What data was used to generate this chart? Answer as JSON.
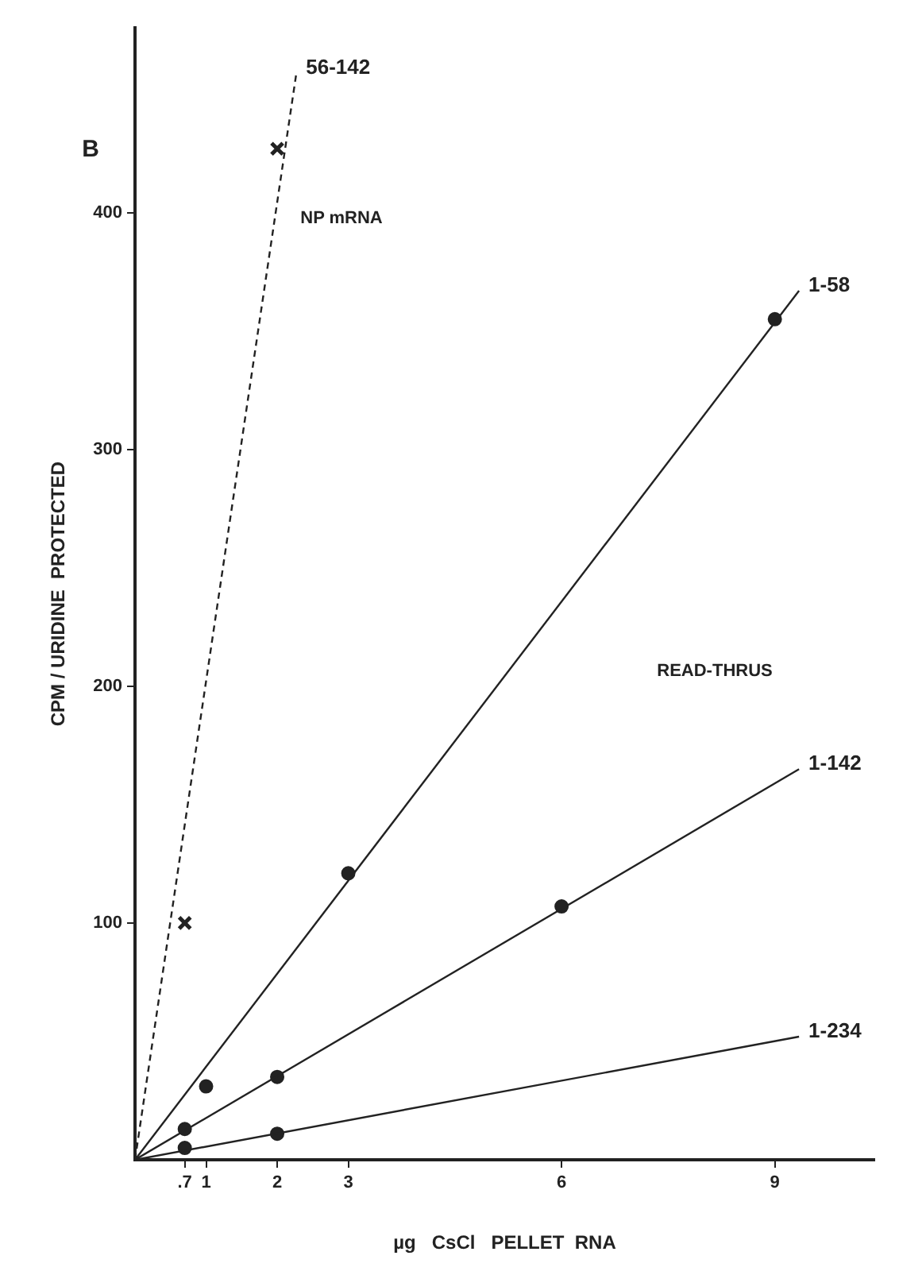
{
  "chart_data": {
    "type": "scatter",
    "xlabel": "µg   CsCl   PELLET  RNA",
    "ylabel": "CPM / URIDINE  PROTECTED",
    "xlim": [
      0,
      10.4
    ],
    "ylim": [
      0,
      478
    ],
    "xticks": [
      {
        "value": 0.7,
        "label": ".7"
      },
      1,
      2,
      3,
      6,
      9
    ],
    "yticks": [
      100,
      200,
      300,
      400
    ],
    "grid": false,
    "series": [
      {
        "type": "line",
        "name": "56-142",
        "color": "#222222",
        "line_style": "dashed",
        "marker": "none",
        "x": [
          0,
          2.27
        ],
        "values": [
          0,
          459
        ]
      },
      {
        "type": "line",
        "name": "1-58",
        "color": "#222222",
        "line_style": "solid",
        "marker": "none",
        "x": [
          0,
          9.34
        ],
        "values": [
          0,
          367
        ]
      },
      {
        "type": "line",
        "name": "1-142",
        "color": "#222222",
        "line_style": "solid",
        "marker": "none",
        "x": [
          0,
          9.34
        ],
        "values": [
          0,
          165
        ]
      },
      {
        "type": "line",
        "name": "1-234",
        "color": "#222222",
        "line_style": "solid",
        "marker": "none",
        "x": [
          0,
          9.34
        ],
        "values": [
          0,
          52
        ]
      },
      {
        "color": "#222222",
        "marker": "cross",
        "x": [
          0.7,
          2
        ],
        "values": [
          100,
          427
        ]
      },
      {
        "color": "#222222",
        "marker": "circle",
        "x": [
          0.7,
          1,
          2,
          3,
          6,
          9,
          0.7,
          2
        ],
        "values": [
          13,
          31,
          35,
          121,
          107,
          355,
          5,
          11
        ]
      }
    ],
    "annotations": [
      "B",
      "NP mRNA",
      "READ-THRUS"
    ]
  }
}
